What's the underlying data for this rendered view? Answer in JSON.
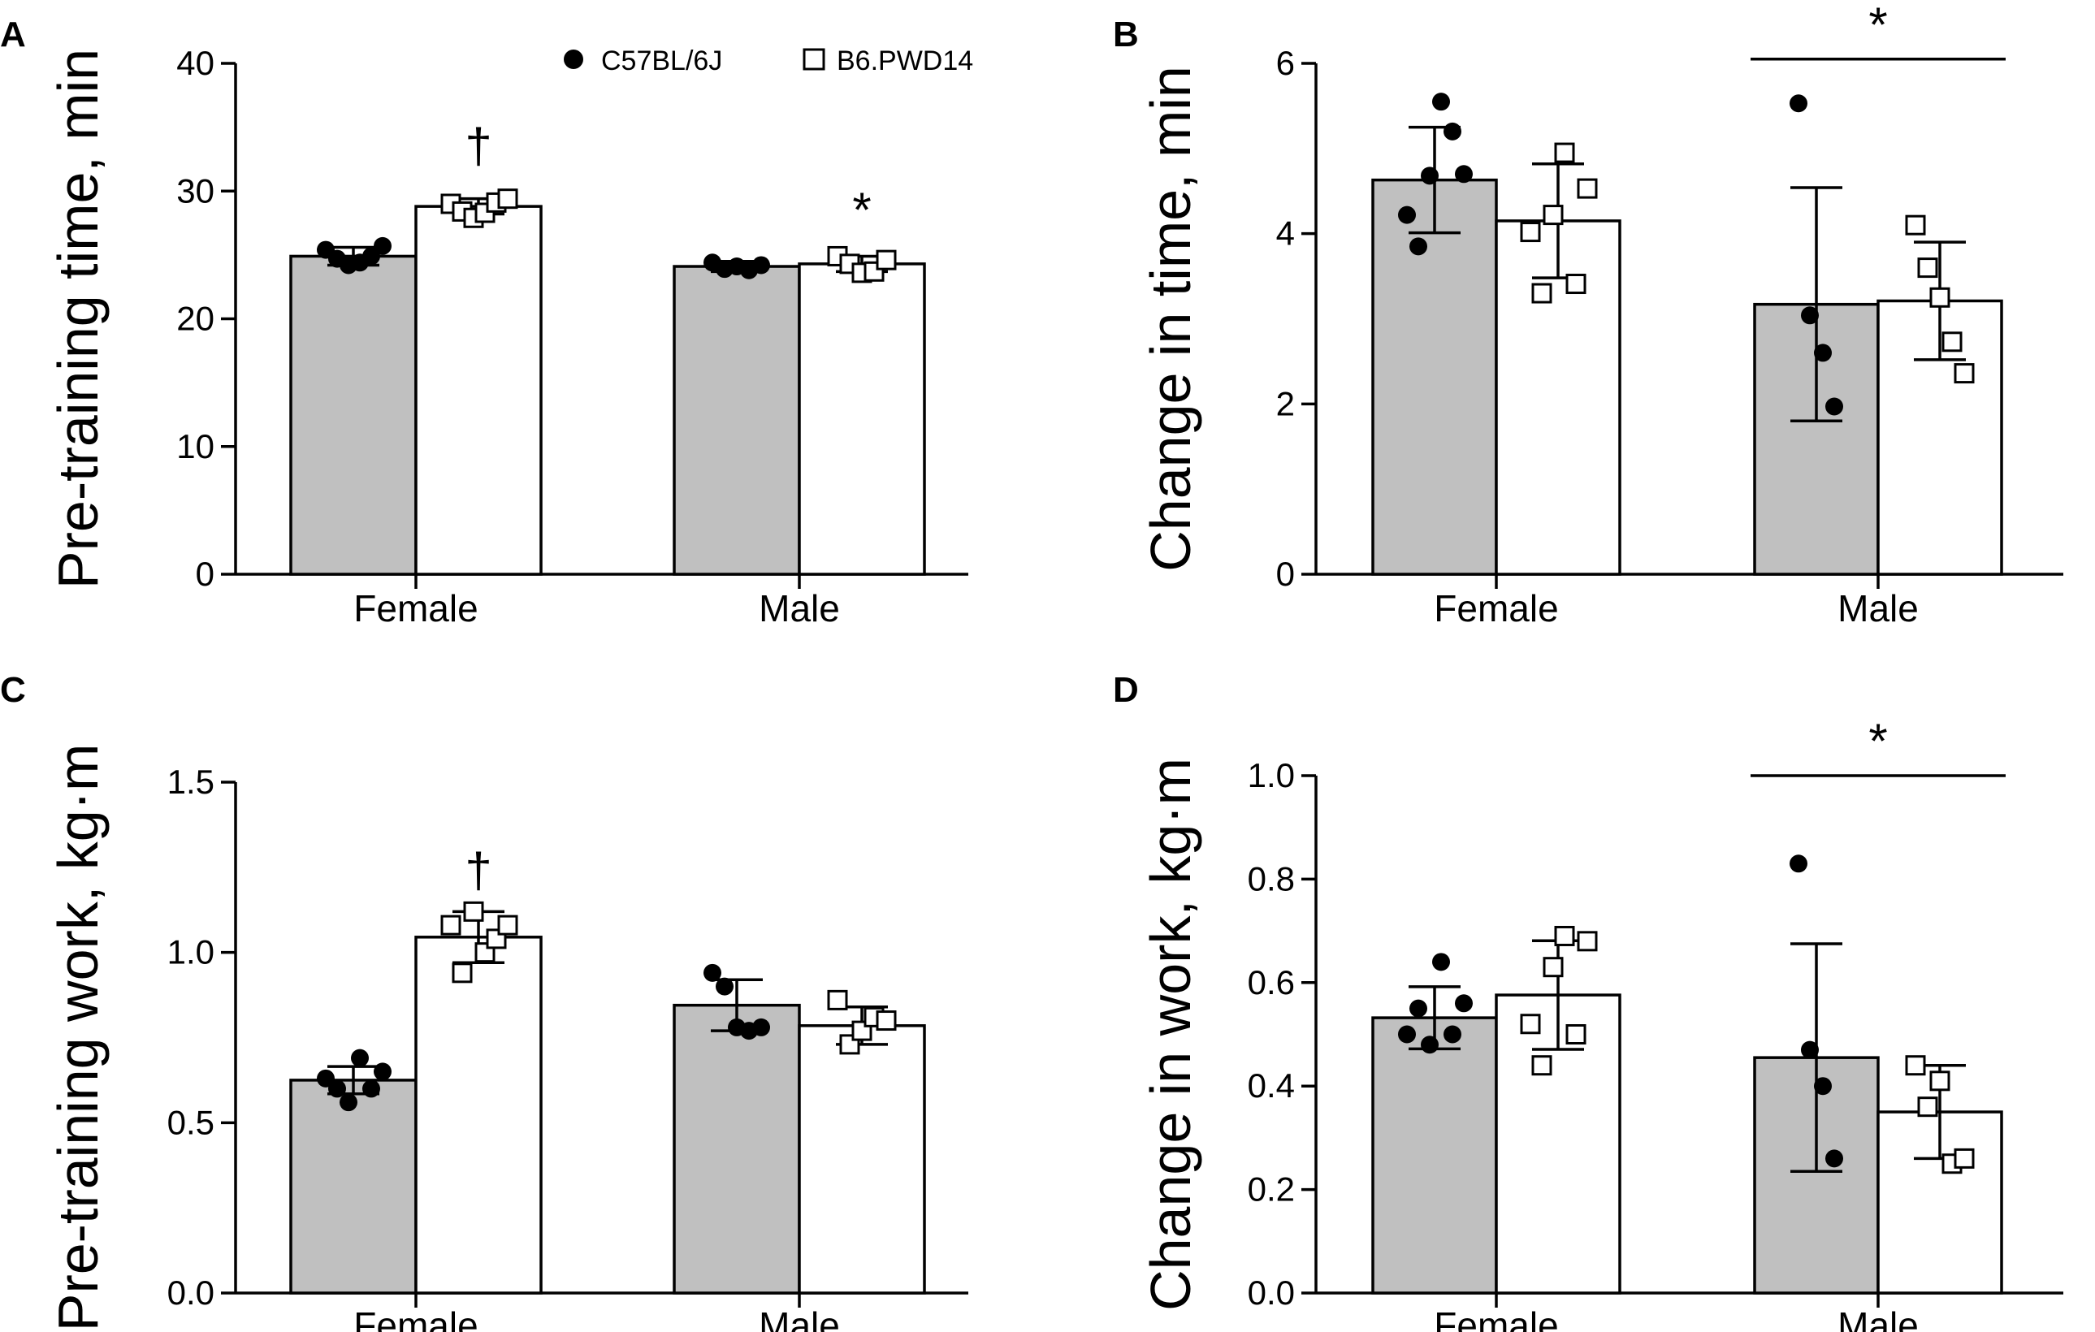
{
  "legend": [
    {
      "label": "C57BL/6J",
      "marker": "filled-circle"
    },
    {
      "label": "B6.PWD14",
      "marker": "open-square"
    }
  ],
  "colors": {
    "c57_bar": "#c0c0c0",
    "b6_bar": "#ffffff",
    "ink": "#000000"
  },
  "chart_data": [
    {
      "panel": "A",
      "type": "bar",
      "ylabel": "Pre-training time, min",
      "categories": [
        "Female",
        "Male"
      ],
      "ylim": [
        0,
        40
      ],
      "yticks": [
        0,
        10,
        20,
        30,
        40
      ],
      "ytick_labels": [
        "0",
        "10",
        "20",
        "30",
        "40"
      ],
      "series": [
        {
          "name": "C57BL/6J",
          "means": [
            24.9,
            24.1
          ],
          "sd": [
            0.7,
            0.4
          ],
          "points": [
            [
              25.4,
              24.7,
              24.2,
              24.4,
              24.9,
              25.7
            ],
            [
              24.4,
              23.9,
              24.1,
              23.8,
              24.2
            ]
          ]
        },
        {
          "name": "B6.PWD14",
          "means": [
            28.8,
            24.3
          ],
          "sd": [
            0.6,
            0.6
          ],
          "points": [
            [
              29.0,
              28.4,
              27.9,
              28.3,
              29.1,
              29.4
            ],
            [
              24.9,
              24.3,
              23.6,
              23.7,
              24.6
            ]
          ]
        }
      ],
      "annotations": [
        {
          "text": "†",
          "series": 1,
          "category": 0,
          "y": 33.5
        },
        {
          "text": "*",
          "series": 1,
          "category": 1,
          "y": 28.5
        }
      ],
      "brackets": []
    },
    {
      "panel": "B",
      "type": "bar",
      "ylabel": "Change in time, min",
      "categories": [
        "Female",
        "Male"
      ],
      "ylim": [
        0,
        6
      ],
      "yticks": [
        0,
        2,
        4,
        6
      ],
      "ytick_labels": [
        "0",
        "2",
        "4",
        "6"
      ],
      "series": [
        {
          "name": "C57BL/6J",
          "means": [
            4.63,
            3.17
          ],
          "sd": [
            0.62,
            1.37
          ],
          "points": [
            [
              4.22,
              3.85,
              4.68,
              5.55,
              5.2,
              4.7
            ],
            [
              5.53,
              3.04,
              2.6,
              1.97
            ]
          ]
        },
        {
          "name": "B6.PWD14",
          "means": [
            4.15,
            3.21
          ],
          "sd": [
            0.67,
            0.69
          ],
          "points": [
            [
              4.02,
              3.3,
              4.22,
              4.95,
              3.41,
              4.53
            ],
            [
              4.1,
              3.6,
              3.25,
              2.73,
              2.36
            ]
          ]
        }
      ],
      "annotations": [],
      "brackets": [
        {
          "text": "*",
          "category": 1,
          "y": 6.05
        }
      ]
    },
    {
      "panel": "C",
      "type": "bar",
      "ylabel": "Pre-training work, kg·m",
      "categories": [
        "Female",
        "Male"
      ],
      "ylim": [
        0,
        1.5
      ],
      "yticks": [
        0,
        0.5,
        1.0,
        1.5
      ],
      "ytick_labels": [
        "0.0",
        "0.5",
        "1.0",
        "1.5"
      ],
      "series": [
        {
          "name": "C57BL/6J",
          "means": [
            0.625,
            0.845
          ],
          "sd": [
            0.04,
            0.075
          ],
          "points": [
            [
              0.63,
              0.6,
              0.56,
              0.69,
              0.6,
              0.65
            ],
            [
              0.94,
              0.9,
              0.78,
              0.77,
              0.78
            ]
          ]
        },
        {
          "name": "B6.PWD14",
          "means": [
            1.045,
            0.785
          ],
          "sd": [
            0.075,
            0.055
          ],
          "points": [
            [
              1.08,
              0.94,
              1.12,
              1.0,
              1.04,
              1.08
            ],
            [
              0.86,
              0.73,
              0.77,
              0.81,
              0.8
            ]
          ]
        }
      ],
      "annotations": [
        {
          "text": "†",
          "series": 1,
          "category": 0,
          "y": 1.24
        }
      ],
      "brackets": []
    },
    {
      "panel": "D",
      "type": "bar",
      "ylabel": "Change in work, kg·m",
      "categories": [
        "Female",
        "Male"
      ],
      "ylim": [
        0,
        1.0
      ],
      "yticks": [
        0,
        0.2,
        0.4,
        0.6,
        0.8,
        1.0
      ],
      "ytick_labels": [
        "0.0",
        "0.2",
        "0.4",
        "0.6",
        "0.8",
        "1.0"
      ],
      "series": [
        {
          "name": "C57BL/6J",
          "means": [
            0.532,
            0.455
          ],
          "sd": [
            0.06,
            0.22
          ],
          "points": [
            [
              0.5,
              0.55,
              0.48,
              0.64,
              0.5,
              0.56
            ],
            [
              0.83,
              0.47,
              0.4,
              0.26
            ]
          ]
        },
        {
          "name": "B6.PWD14",
          "means": [
            0.576,
            0.35
          ],
          "sd": [
            0.105,
            0.09
          ],
          "points": [
            [
              0.52,
              0.44,
              0.63,
              0.69,
              0.5,
              0.68
            ],
            [
              0.44,
              0.36,
              0.41,
              0.25,
              0.26
            ]
          ]
        }
      ],
      "annotations": [],
      "brackets": [
        {
          "text": "*",
          "category": 1,
          "y": 1.0
        }
      ]
    }
  ]
}
